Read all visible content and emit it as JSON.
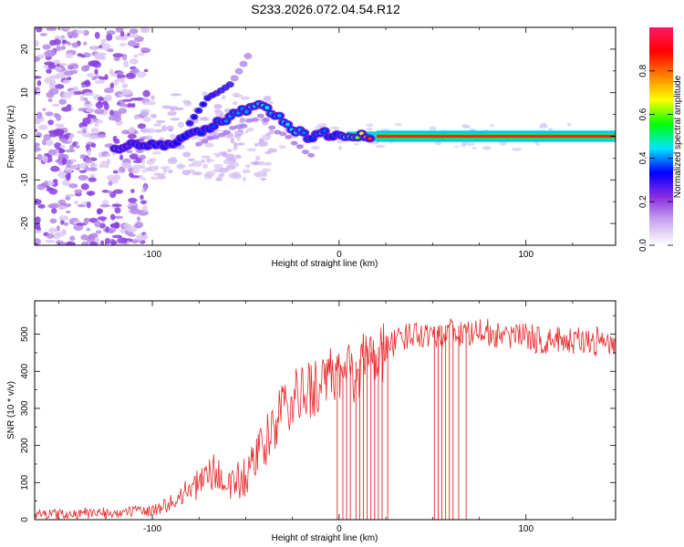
{
  "title": "S233.2026.072.04.54.R12",
  "chart_data": [
    {
      "type": "heatmap",
      "xlabel": "Height of straight line (km)",
      "ylabel": "Frequency (Hz)",
      "xlim": [
        -163,
        148
      ],
      "ylim": [
        -25,
        25
      ],
      "xticks": [
        -100,
        0,
        100
      ],
      "yticks": [
        -20,
        -10,
        0,
        10,
        20
      ],
      "grid": false,
      "colorbar": {
        "label": "Normalized spectral amplitude",
        "range": [
          0,
          1
        ],
        "ticks": [
          0,
          0.2,
          0.4,
          0.6,
          0.8
        ],
        "colormap": [
          "#ffffff",
          "#c9a9ee",
          "#8a2be2",
          "#0000ff",
          "#00e5ff",
          "#00ff00",
          "#ffff00",
          "#ff8000",
          "#ff0000",
          "#ff1a66"
        ]
      },
      "ridge": {
        "x": [
          -120,
          -110,
          -100,
          -90,
          -80,
          -70,
          -60,
          -50,
          -42,
          -35,
          -25,
          -15,
          -10,
          -5,
          0,
          5,
          10,
          20,
          40,
          60,
          100,
          148
        ],
        "frequency": [
          -3,
          -2,
          -2,
          -2,
          0,
          2,
          4,
          6,
          8,
          5,
          2,
          -1,
          1,
          0,
          0,
          0,
          0,
          0,
          0,
          0,
          0,
          0
        ],
        "amplitude": [
          0.15,
          0.2,
          0.25,
          0.25,
          0.3,
          0.3,
          0.35,
          0.35,
          0.45,
          0.35,
          0.4,
          0.3,
          0.35,
          0.3,
          0.3,
          0.45,
          0.55,
          0.95,
          0.95,
          0.95,
          0.95,
          0.95
        ]
      },
      "branch": {
        "x": [
          -80,
          -75,
          -70,
          -65,
          -58,
          -52,
          -48
        ],
        "frequency": [
          3,
          6,
          9,
          10,
          12,
          16,
          19
        ],
        "amplitude": [
          0.3,
          0.35,
          0.3,
          0.25,
          0.2,
          0.15,
          0.12
        ]
      }
    },
    {
      "type": "line",
      "xlabel": "Height of straight line (km)",
      "ylabel": "SNR (10 * v/v)",
      "xlim": [
        -163,
        148
      ],
      "ylim": [
        0,
        590
      ],
      "xticks": [
        -100,
        0,
        100
      ],
      "yticks": [
        0,
        100,
        200,
        300,
        400,
        500
      ],
      "grid": false,
      "color": "#e8282a",
      "series": [
        {
          "x": [
            -163,
            -140,
            -120,
            -100,
            -90,
            -80,
            -72,
            -68,
            -60,
            -50,
            -40,
            -35,
            -30,
            -25,
            -20,
            -15,
            -10,
            -5,
            0,
            5,
            10,
            15,
            20,
            25,
            30,
            40,
            50,
            60,
            70,
            80,
            90,
            100,
            110,
            120,
            130,
            140,
            148
          ],
          "values": [
            15,
            15,
            18,
            25,
            45,
            80,
            110,
            130,
            95,
            110,
            200,
            250,
            300,
            320,
            330,
            360,
            360,
            375,
            395,
            390,
            410,
            425,
            440,
            470,
            475,
            505,
            500,
            505,
            500,
            505,
            490,
            495,
            480,
            485,
            480,
            475,
            470
          ]
        }
      ],
      "dropouts_x": [
        -1,
        2,
        4,
        6,
        9,
        11,
        13,
        15,
        17,
        19,
        21,
        23,
        26,
        51,
        53,
        55,
        57,
        59,
        61,
        64,
        68,
        148
      ]
    }
  ]
}
